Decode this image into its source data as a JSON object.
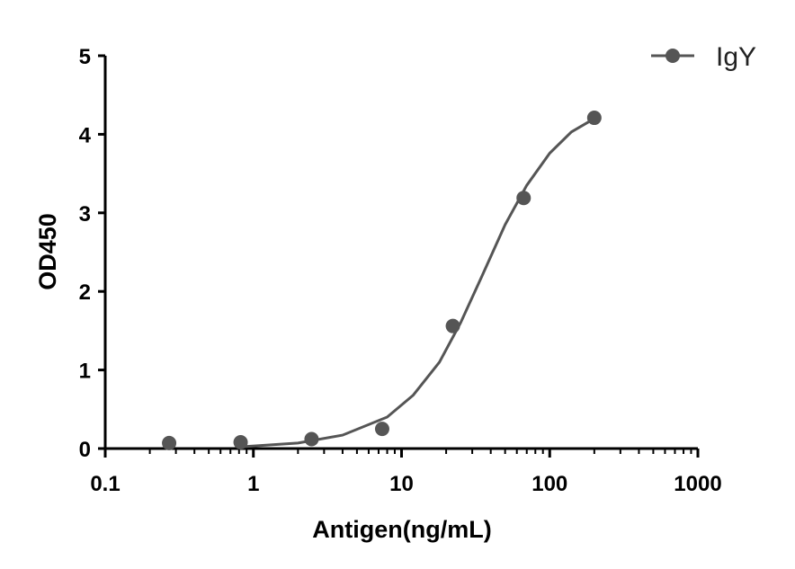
{
  "chart_data": {
    "type": "scatter",
    "title": "",
    "xlabel": "Antigen(ng/mL)",
    "ylabel": "OD450",
    "xscale": "log",
    "xlim": [
      0.1,
      1000
    ],
    "ylim": [
      0,
      5
    ],
    "xticks": [
      "0.1",
      "1",
      "10",
      "100",
      "1000"
    ],
    "yticks": [
      "0",
      "1",
      "2",
      "3",
      "4",
      "5"
    ],
    "legend_position": "top-right",
    "grid": false,
    "series": [
      {
        "name": "IgY",
        "color": "#555555",
        "marker": "circle",
        "fit": "four-parameter logistic",
        "points": [
          {
            "x": 0.27,
            "y": 0.07
          },
          {
            "x": 0.82,
            "y": 0.08
          },
          {
            "x": 2.47,
            "y": 0.12
          },
          {
            "x": 7.4,
            "y": 0.25
          },
          {
            "x": 22.2,
            "y": 1.56
          },
          {
            "x": 66.7,
            "y": 3.19
          },
          {
            "x": 200,
            "y": 4.21
          }
        ],
        "curve": [
          {
            "x": 0.8,
            "y": 0.02
          },
          {
            "x": 2,
            "y": 0.07
          },
          {
            "x": 4,
            "y": 0.17
          },
          {
            "x": 8,
            "y": 0.4
          },
          {
            "x": 12,
            "y": 0.68
          },
          {
            "x": 18,
            "y": 1.1
          },
          {
            "x": 25,
            "y": 1.6
          },
          {
            "x": 35,
            "y": 2.2
          },
          {
            "x": 50,
            "y": 2.85
          },
          {
            "x": 70,
            "y": 3.35
          },
          {
            "x": 100,
            "y": 3.76
          },
          {
            "x": 140,
            "y": 4.03
          },
          {
            "x": 200,
            "y": 4.2
          }
        ]
      }
    ]
  }
}
